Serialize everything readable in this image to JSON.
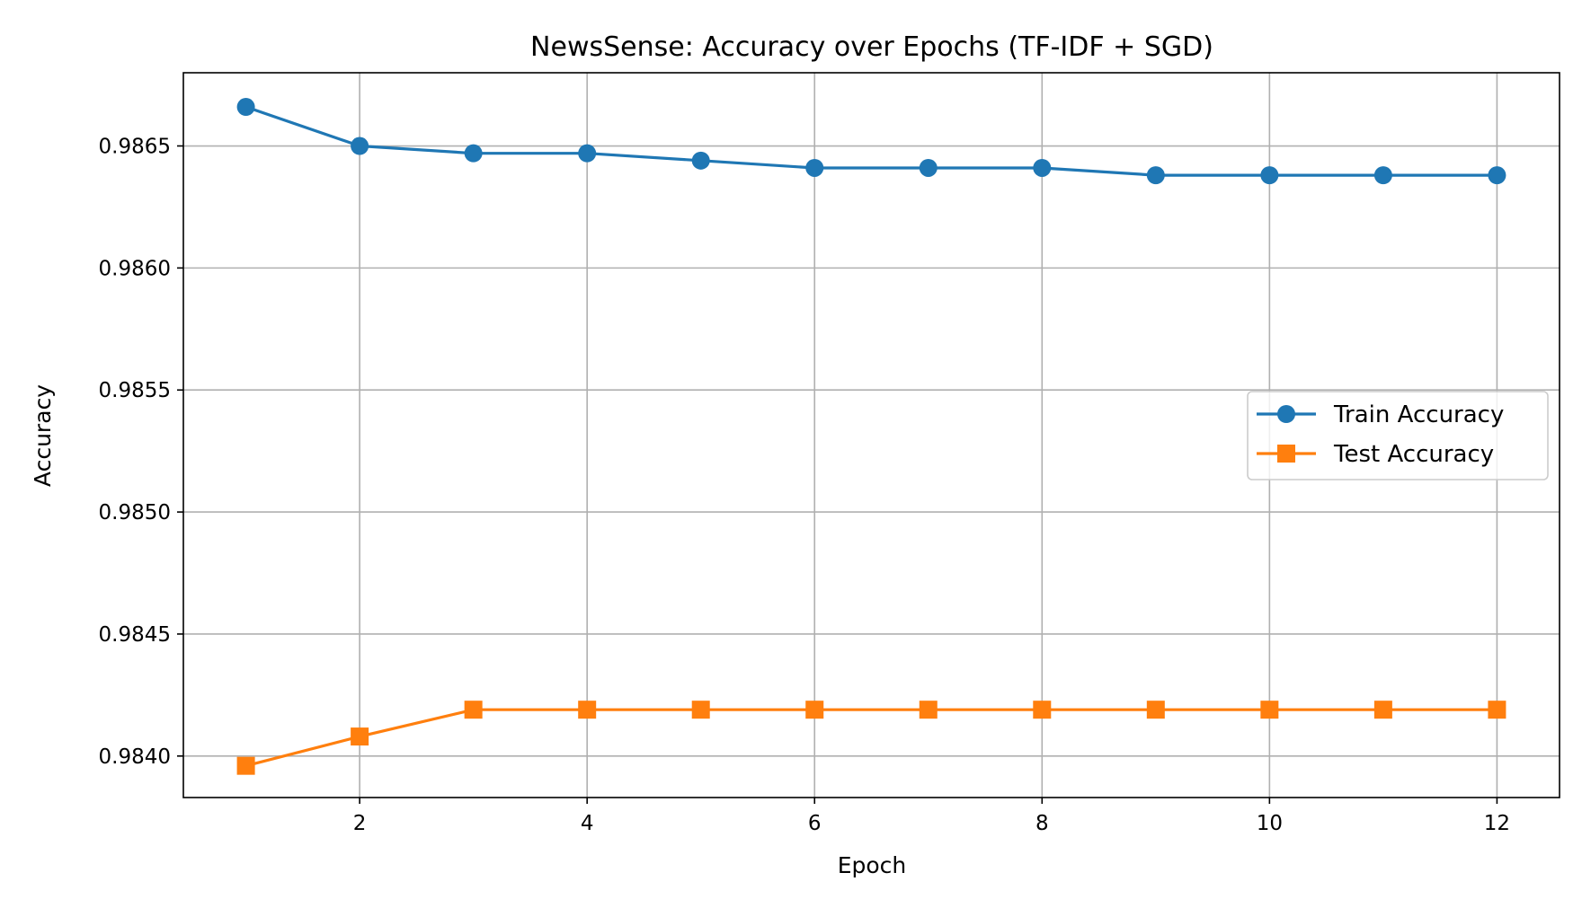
{
  "chart_data": {
    "type": "line",
    "title": "NewsSense: Accuracy over Epochs (TF-IDF + SGD)",
    "xlabel": "Epoch",
    "ylabel": "Accuracy",
    "x": [
      1,
      2,
      3,
      4,
      5,
      6,
      7,
      8,
      9,
      10,
      11,
      12
    ],
    "xlim": [
      0.45,
      12.55
    ],
    "ylim": [
      0.98383,
      0.9868
    ],
    "xticks": [
      2,
      4,
      6,
      8,
      10,
      12
    ],
    "yticks": [
      0.984,
      0.9845,
      0.985,
      0.9855,
      0.986,
      0.9865
    ],
    "xtick_labels": [
      "2",
      "4",
      "6",
      "8",
      "10",
      "12"
    ],
    "ytick_labels": [
      "0.9840",
      "0.9845",
      "0.9850",
      "0.9855",
      "0.9860",
      "0.9865"
    ],
    "grid": true,
    "legend_position": "center-right",
    "series": [
      {
        "name": "Train Accuracy",
        "color": "#1f77b4",
        "marker": "circle",
        "values": [
          0.98666,
          0.9865,
          0.98647,
          0.98647,
          0.98644,
          0.98641,
          0.98641,
          0.98641,
          0.98638,
          0.98638,
          0.98638,
          0.98638
        ]
      },
      {
        "name": "Test Accuracy",
        "color": "#ff7f0e",
        "marker": "square",
        "values": [
          0.98396,
          0.98408,
          0.98419,
          0.98419,
          0.98419,
          0.98419,
          0.98419,
          0.98419,
          0.98419,
          0.98419,
          0.98419,
          0.98419
        ]
      }
    ]
  }
}
